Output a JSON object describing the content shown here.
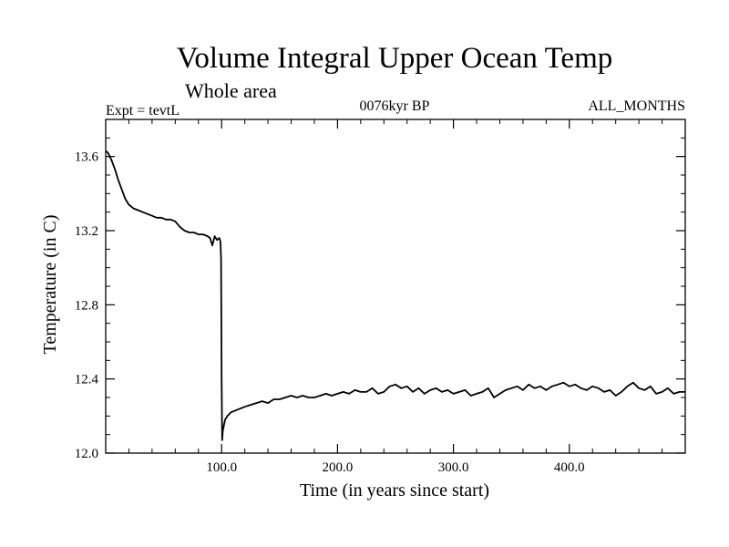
{
  "chart_data": {
    "type": "line",
    "title": "Volume Integral Upper Ocean Temp",
    "subtitle": "Whole area",
    "left_note": "Expt = tevtL",
    "center_note": "0076kyr BP",
    "right_note": "ALL_MONTHS",
    "xlabel": "Time (in years since start)",
    "ylabel": "Temperature (in C)",
    "xlim": [
      0,
      500
    ],
    "ylim": [
      12.0,
      13.8
    ],
    "x_ticks": [
      100,
      200,
      300,
      400
    ],
    "x_tick_labels": [
      "100.0",
      "200.0",
      "300.0",
      "400.0"
    ],
    "y_ticks": [
      12.0,
      12.4,
      12.8,
      13.2,
      13.6
    ],
    "y_tick_labels": [
      "12.0",
      "12.4",
      "12.8",
      "13.2",
      "13.6"
    ],
    "grid": false,
    "series": [
      {
        "x": [
          0,
          2,
          5,
          8,
          11,
          14,
          17,
          20,
          24,
          28,
          32,
          36,
          40,
          44,
          48,
          52,
          56,
          60,
          64,
          68,
          72,
          76,
          80,
          84,
          88,
          90,
          92,
          94,
          96,
          98,
          99,
          99.5,
          100,
          100.5,
          101,
          103,
          105,
          108,
          112,
          116,
          120,
          125,
          130,
          135,
          140,
          145,
          150,
          155,
          160,
          165,
          170,
          175,
          180,
          185,
          190,
          195,
          200,
          205,
          210,
          215,
          220,
          225,
          230,
          235,
          240,
          245,
          250,
          255,
          260,
          265,
          270,
          275,
          280,
          285,
          290,
          295,
          300,
          305,
          310,
          315,
          320,
          325,
          330,
          335,
          340,
          345,
          350,
          355,
          360,
          365,
          370,
          375,
          380,
          385,
          390,
          395,
          400,
          405,
          410,
          415,
          420,
          425,
          430,
          435,
          440,
          445,
          450,
          455,
          460,
          465,
          470,
          475,
          480,
          485,
          490,
          495,
          500
        ],
        "values": [
          13.63,
          13.62,
          13.58,
          13.53,
          13.47,
          13.42,
          13.37,
          13.34,
          13.32,
          13.31,
          13.3,
          13.29,
          13.28,
          13.27,
          13.27,
          13.26,
          13.26,
          13.25,
          13.22,
          13.2,
          13.19,
          13.19,
          13.18,
          13.18,
          13.17,
          13.16,
          13.12,
          13.17,
          13.15,
          13.16,
          13.14,
          13.05,
          12.4,
          12.07,
          12.12,
          12.18,
          12.2,
          12.22,
          12.23,
          12.24,
          12.25,
          12.26,
          12.27,
          12.28,
          12.27,
          12.29,
          12.29,
          12.3,
          12.31,
          12.3,
          12.31,
          12.3,
          12.3,
          12.31,
          12.32,
          12.31,
          12.32,
          12.33,
          12.32,
          12.34,
          12.33,
          12.33,
          12.35,
          12.32,
          12.33,
          12.36,
          12.37,
          12.35,
          12.36,
          12.33,
          12.35,
          12.32,
          12.34,
          12.35,
          12.33,
          12.34,
          12.32,
          12.33,
          12.34,
          12.31,
          12.32,
          12.33,
          12.35,
          12.3,
          12.32,
          12.34,
          12.35,
          12.36,
          12.34,
          12.37,
          12.35,
          12.36,
          12.34,
          12.36,
          12.37,
          12.38,
          12.36,
          12.37,
          12.35,
          12.34,
          12.36,
          12.35,
          12.33,
          12.34,
          12.31,
          12.33,
          12.36,
          12.38,
          12.35,
          12.34,
          12.36,
          12.32,
          12.33,
          12.35,
          12.32,
          12.33,
          12.33
        ]
      }
    ]
  }
}
